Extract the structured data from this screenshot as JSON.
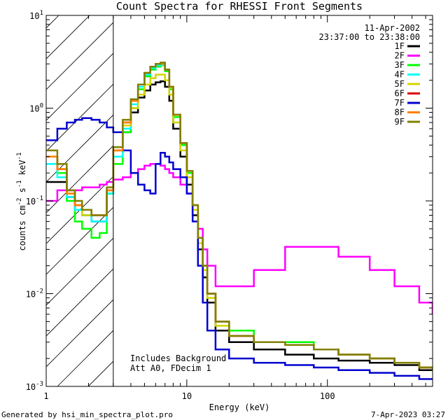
{
  "chart_data": {
    "type": "line",
    "title": "Count Spectra for RHESSI Front Segments",
    "xlabel": "Energy (keV)",
    "ylabel_parts": [
      "counts cm",
      "-2",
      " s",
      "-1",
      " keV",
      "-1"
    ],
    "xscale": "log",
    "yscale": "log",
    "xlim": [
      1,
      560
    ],
    "ylim": [
      0.001,
      10
    ],
    "x_ticks": [
      {
        "v": 1,
        "label": "1"
      },
      {
        "v": 10,
        "label": "10"
      },
      {
        "v": 100,
        "label": "100"
      }
    ],
    "y_ticks": [
      {
        "v": 0.001,
        "base": "10",
        "exp": "-3"
      },
      {
        "v": 0.01,
        "base": "10",
        "exp": "-2"
      },
      {
        "v": 0.1,
        "base": "10",
        "exp": "-1"
      },
      {
        "v": 1,
        "base": "10",
        "exp": "0"
      },
      {
        "v": 10,
        "base": "10",
        "exp": "1"
      }
    ],
    "hatched_region_max_energy": 3,
    "date_label": "11-Apr-2002",
    "time_label": "23:37:00 to 23:38:00",
    "annotations": [
      "Includes Background",
      "Att A0, FDecim 1"
    ],
    "series": [
      {
        "name": "1F",
        "color": "#000000",
        "x": [
          1,
          1.2,
          1.4,
          1.6,
          1.8,
          2.1,
          2.4,
          2.7,
          3.0,
          3.5,
          4.0,
          4.5,
          5.0,
          5.5,
          6.0,
          6.5,
          7.0,
          7.5,
          8.0,
          9.0,
          10.0,
          11.0,
          12.0,
          13.0,
          14.0,
          16.0,
          20.0,
          30.0,
          50.0,
          80.0,
          120.0,
          200.0,
          300.0,
          450.0,
          560.0
        ],
        "y": [
          0.16,
          0.16,
          0.11,
          0.08,
          0.07,
          0.06,
          0.06,
          0.12,
          0.3,
          0.55,
          0.9,
          1.3,
          1.55,
          1.8,
          1.9,
          1.95,
          1.7,
          1.2,
          0.6,
          0.3,
          0.15,
          0.07,
          0.03,
          0.015,
          0.008,
          0.004,
          0.003,
          0.0025,
          0.0022,
          0.002,
          0.0019,
          0.0018,
          0.0017,
          0.0015,
          0.0015
        ]
      },
      {
        "name": "2F",
        "color": "#ff00ff",
        "x": [
          1,
          1.2,
          1.4,
          1.6,
          1.8,
          2.1,
          2.4,
          2.7,
          3.0,
          3.5,
          4.0,
          4.5,
          5.0,
          5.5,
          6.0,
          6.5,
          7.0,
          7.5,
          8.0,
          9.0,
          10.0,
          11.0,
          12.0,
          13.0,
          14.0,
          16.0,
          20.0,
          30.0,
          50.0,
          80.0,
          120.0,
          200.0,
          300.0,
          450.0,
          560.0
        ],
        "y": [
          0.1,
          0.13,
          0.13,
          0.13,
          0.14,
          0.14,
          0.15,
          0.16,
          0.17,
          0.18,
          0.2,
          0.22,
          0.24,
          0.25,
          0.25,
          0.24,
          0.22,
          0.2,
          0.18,
          0.15,
          0.12,
          0.08,
          0.05,
          0.03,
          0.02,
          0.012,
          0.012,
          0.018,
          0.032,
          0.032,
          0.025,
          0.018,
          0.012,
          0.008,
          0.006
        ]
      },
      {
        "name": "3F",
        "color": "#00ff00",
        "x": [
          1,
          1.2,
          1.4,
          1.6,
          1.8,
          2.1,
          2.4,
          2.7,
          3.0,
          3.5,
          4.0,
          4.5,
          5.0,
          5.5,
          6.0,
          6.5,
          7.0,
          7.5,
          8.0,
          9.0,
          10.0,
          11.0,
          12.0,
          13.0,
          14.0,
          16.0,
          20.0,
          30.0,
          50.0,
          80.0,
          120.0,
          200.0,
          300.0,
          450.0,
          560.0
        ],
        "y": [
          0.25,
          0.2,
          0.1,
          0.06,
          0.05,
          0.04,
          0.045,
          0.12,
          0.25,
          0.55,
          1.0,
          1.6,
          2.2,
          2.6,
          2.8,
          2.9,
          2.5,
          1.6,
          0.8,
          0.4,
          0.2,
          0.09,
          0.04,
          0.02,
          0.01,
          0.005,
          0.004,
          0.003,
          0.003,
          0.0025,
          0.0022,
          0.002,
          0.0018,
          0.0016,
          0.0015
        ]
      },
      {
        "name": "4F",
        "color": "#00ffff",
        "x": [
          1,
          1.2,
          1.4,
          1.6,
          1.8,
          2.1,
          2.4,
          2.7,
          3.0,
          3.5,
          4.0,
          4.5,
          5.0,
          5.5,
          6.0,
          6.5,
          7.0,
          7.5,
          8.0,
          9.0,
          10.0,
          11.0,
          12.0,
          13.0,
          14.0,
          16.0,
          20.0,
          30.0,
          50.0,
          80.0,
          120.0,
          200.0,
          300.0,
          450.0,
          560.0
        ],
        "y": [
          0.25,
          0.18,
          0.11,
          0.08,
          0.07,
          0.06,
          0.06,
          0.12,
          0.3,
          0.6,
          1.1,
          1.7,
          2.3,
          2.7,
          2.9,
          2.95,
          2.6,
          1.7,
          0.85,
          0.42,
          0.21,
          0.09,
          0.04,
          0.02,
          0.01,
          0.005,
          0.0035,
          0.003,
          0.0028,
          0.0025,
          0.0022,
          0.002,
          0.0018,
          0.0016,
          0.0015
        ]
      },
      {
        "name": "5F",
        "color": "#d4d400",
        "x": [
          1,
          1.2,
          1.4,
          1.6,
          1.8,
          2.1,
          2.4,
          2.7,
          3.0,
          3.5,
          4.0,
          4.5,
          5.0,
          5.5,
          6.0,
          6.5,
          7.0,
          7.5,
          8.0,
          9.0,
          10.0,
          11.0,
          12.0,
          13.0,
          14.0,
          16.0,
          20.0,
          30.0,
          50.0,
          80.0,
          120.0,
          200.0,
          300.0,
          450.0,
          560.0
        ],
        "y": [
          0.3,
          0.22,
          0.12,
          0.09,
          0.07,
          0.07,
          0.07,
          0.13,
          0.35,
          0.65,
          1.0,
          1.4,
          1.8,
          2.1,
          2.3,
          2.3,
          2.0,
          1.4,
          0.7,
          0.35,
          0.18,
          0.08,
          0.035,
          0.018,
          0.009,
          0.0045,
          0.0035,
          0.003,
          0.0028,
          0.0025,
          0.0022,
          0.002,
          0.0018,
          0.0016,
          0.0015
        ]
      },
      {
        "name": "6F",
        "color": "#e00000",
        "x": [
          1,
          1.2,
          1.4,
          1.6,
          1.8,
          2.1,
          2.4,
          2.7,
          3.0,
          3.5,
          4.0,
          4.5,
          5.0,
          5.5,
          6.0,
          6.5,
          7.0,
          7.5,
          8.0,
          9.0,
          10.0,
          11.0,
          12.0,
          13.0,
          14.0,
          16.0,
          20.0,
          30.0,
          50.0,
          80.0,
          120.0,
          200.0,
          300.0,
          450.0,
          560.0
        ],
        "y": [
          0.3,
          0.22,
          0.13,
          0.09,
          0.08,
          0.07,
          0.07,
          0.13,
          0.35,
          0.7,
          1.2,
          1.8,
          2.4,
          2.8,
          3.0,
          3.0,
          2.6,
          1.7,
          0.85,
          0.42,
          0.21,
          0.09,
          0.04,
          0.02,
          0.01,
          0.005,
          0.0035,
          0.003,
          0.0028,
          0.0025,
          0.0022,
          0.002,
          0.0018,
          0.0016,
          0.0015
        ]
      },
      {
        "name": "7F",
        "color": "#0000d0",
        "x": [
          1,
          1.2,
          1.4,
          1.6,
          1.8,
          2.1,
          2.4,
          2.7,
          3.0,
          3.5,
          4.0,
          4.5,
          5.0,
          5.5,
          6.0,
          6.5,
          7.0,
          7.5,
          8.0,
          9.0,
          10.0,
          11.0,
          12.0,
          13.0,
          14.0,
          16.0,
          20.0,
          30.0,
          50.0,
          80.0,
          120.0,
          200.0,
          300.0,
          450.0,
          560.0
        ],
        "y": [
          0.45,
          0.6,
          0.7,
          0.75,
          0.78,
          0.75,
          0.7,
          0.62,
          0.55,
          0.35,
          0.2,
          0.15,
          0.13,
          0.12,
          0.25,
          0.33,
          0.3,
          0.26,
          0.22,
          0.18,
          0.12,
          0.06,
          0.02,
          0.008,
          0.004,
          0.0025,
          0.002,
          0.0018,
          0.0017,
          0.0016,
          0.0015,
          0.0014,
          0.0013,
          0.0012,
          0.0012
        ]
      },
      {
        "name": "8F",
        "color": "#ff8000",
        "x": [
          1,
          1.2,
          1.4,
          1.6,
          1.8,
          2.1,
          2.4,
          2.7,
          3.0,
          3.5,
          4.0,
          4.5,
          5.0,
          5.5,
          6.0,
          6.5,
          7.0,
          7.5,
          8.0,
          9.0,
          10.0,
          11.0,
          12.0,
          13.0,
          14.0,
          16.0,
          20.0,
          30.0,
          50.0,
          80.0,
          120.0,
          200.0,
          300.0,
          450.0,
          560.0
        ],
        "y": [
          0.3,
          0.22,
          0.12,
          0.09,
          0.08,
          0.07,
          0.07,
          0.13,
          0.35,
          0.7,
          1.2,
          1.8,
          2.4,
          2.8,
          3.0,
          3.0,
          2.6,
          1.7,
          0.85,
          0.42,
          0.21,
          0.09,
          0.04,
          0.02,
          0.01,
          0.005,
          0.0035,
          0.003,
          0.0028,
          0.0025,
          0.0022,
          0.002,
          0.0018,
          0.0016,
          0.0015
        ]
      },
      {
        "name": "9F",
        "color": "#808000",
        "x": [
          1,
          1.2,
          1.4,
          1.6,
          1.8,
          2.1,
          2.4,
          2.7,
          3.0,
          3.5,
          4.0,
          4.5,
          5.0,
          5.5,
          6.0,
          6.5,
          7.0,
          7.5,
          8.0,
          9.0,
          10.0,
          11.0,
          12.0,
          13.0,
          14.0,
          16.0,
          20.0,
          30.0,
          50.0,
          80.0,
          120.0,
          200.0,
          300.0,
          450.0,
          560.0
        ],
        "y": [
          0.35,
          0.25,
          0.13,
          0.1,
          0.08,
          0.07,
          0.07,
          0.14,
          0.38,
          0.75,
          1.25,
          1.8,
          2.4,
          2.8,
          3.0,
          3.1,
          2.6,
          1.7,
          0.85,
          0.42,
          0.21,
          0.09,
          0.04,
          0.02,
          0.01,
          0.005,
          0.0035,
          0.003,
          0.0028,
          0.0025,
          0.0022,
          0.002,
          0.0018,
          0.0016,
          0.0015
        ]
      }
    ]
  },
  "footer": {
    "left": "Generated by hsi_min_spectra_plot.pro",
    "right": "7-Apr-2023 03:27"
  }
}
